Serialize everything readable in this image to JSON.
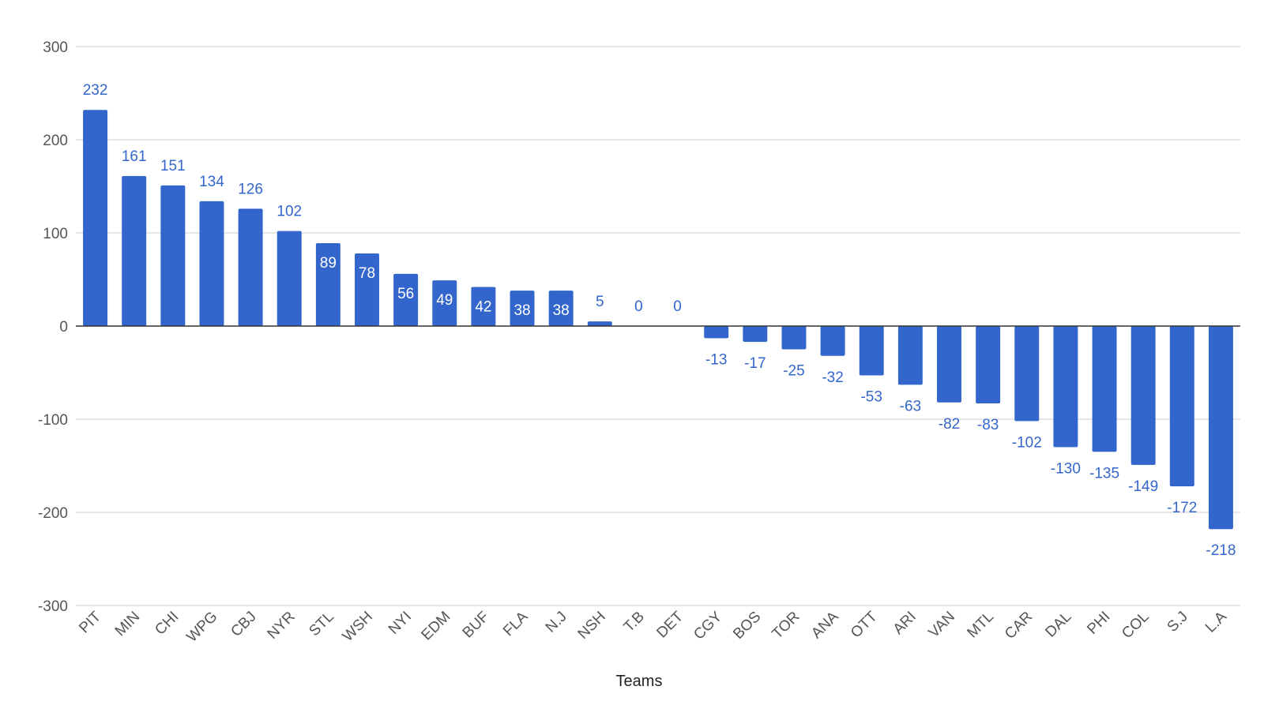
{
  "chart_data": {
    "type": "bar",
    "title": "",
    "xlabel": "Teams",
    "ylabel": "",
    "ylim": [
      -300,
      300
    ],
    "yticks": [
      300,
      200,
      100,
      0,
      -100,
      -200,
      -300
    ],
    "grid": true,
    "legend": "none",
    "colors": {
      "bar": "#3366cc",
      "label_outside": "#3366cc",
      "label_inside": "#ffffff",
      "grid": "#cccccc",
      "zero_line": "#333333"
    },
    "categories": [
      "PIT",
      "MIN",
      "CHI",
      "WPG",
      "CBJ",
      "NYR",
      "STL",
      "WSH",
      "NYI",
      "EDM",
      "BUF",
      "FLA",
      "N.J",
      "NSH",
      "T.B",
      "DET",
      "CGY",
      "BOS",
      "TOR",
      "ANA",
      "OTT",
      "ARI",
      "VAN",
      "MTL",
      "CAR",
      "DAL",
      "PHI",
      "COL",
      "S.J",
      "L.A"
    ],
    "values": [
      232,
      161,
      151,
      134,
      126,
      102,
      89,
      78,
      56,
      49,
      42,
      38,
      38,
      5,
      0,
      0,
      -13,
      -17,
      -25,
      -32,
      -53,
      -63,
      -82,
      -83,
      -102,
      -130,
      -135,
      -149,
      -172,
      -218
    ]
  }
}
